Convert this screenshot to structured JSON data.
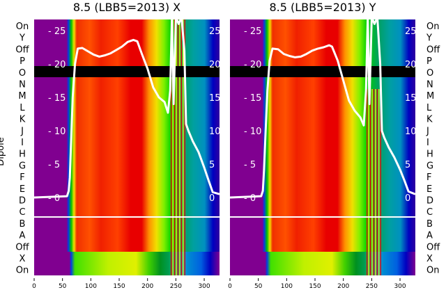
{
  "chart_data": [
    {
      "type": "heatmap",
      "title": "8.5 (LBB5=2013) X",
      "ylabel": "Dipole",
      "xlim": [
        0,
        327
      ],
      "xticks": [
        0,
        50,
        100,
        150,
        200,
        250,
        300
      ],
      "row_labels": [
        "On",
        "Y",
        "Off",
        "P",
        "O",
        "N",
        "M",
        "L",
        "K",
        "J",
        "I",
        "H",
        "G",
        "F",
        "E",
        "D",
        "C",
        "B",
        "A",
        "Off",
        "X",
        "On"
      ],
      "inner_yticks": [
        25,
        20,
        15,
        10,
        5,
        0
      ],
      "line": {
        "x": [
          0,
          58,
          61,
          63,
          65,
          68,
          72,
          77,
          85,
          95,
          105,
          115,
          125,
          135,
          145,
          155,
          165,
          175,
          182,
          190,
          200,
          210,
          220,
          230,
          236,
          240,
          243,
          246,
          250,
          255,
          260,
          265,
          268,
          272,
          280,
          290,
          300,
          308,
          315,
          327
        ],
        "y": [
          0,
          0.2,
          1,
          3,
          8,
          15,
          20,
          22.3,
          22.4,
          21.9,
          21.4,
          21.1,
          21.3,
          21.6,
          22.1,
          22.6,
          23.3,
          23.6,
          23.4,
          21.5,
          19.3,
          16.5,
          15,
          14.3,
          12.7,
          16,
          27,
          14,
          27,
          26,
          27,
          22,
          11,
          10,
          8.4,
          6.8,
          4.5,
          2.5,
          0.8,
          0.5
        ]
      }
    },
    {
      "type": "heatmap",
      "title": "8.5 (LBB5=2013) Y",
      "ylabel": "",
      "xlim": [
        0,
        327
      ],
      "xticks": [
        0,
        50,
        100,
        150,
        200,
        250,
        300
      ],
      "row_labels": [
        "On",
        "Y",
        "Off",
        "P",
        "O",
        "N",
        "M",
        "L",
        "K",
        "J",
        "I",
        "H",
        "G",
        "F",
        "E",
        "D",
        "C",
        "B",
        "A",
        "Off",
        "X",
        "On"
      ],
      "inner_yticks": [
        25,
        20,
        15,
        10,
        5,
        0
      ],
      "line": {
        "x": [
          0,
          55,
          58,
          60,
          63,
          66,
          70,
          75,
          85,
          95,
          105,
          115,
          125,
          135,
          145,
          155,
          165,
          175,
          180,
          190,
          200,
          210,
          220,
          230,
          236,
          240,
          243,
          246,
          250,
          255,
          260,
          265,
          268,
          272,
          280,
          290,
          300,
          308,
          315,
          327
        ],
        "y": [
          0,
          0.2,
          1,
          4,
          10,
          16,
          20.5,
          22.3,
          22.2,
          21.5,
          21.2,
          21,
          21.1,
          21.5,
          22,
          22.3,
          22.5,
          22.8,
          22.6,
          20.5,
          17.5,
          14.5,
          13,
          12,
          10.8,
          16,
          27,
          14,
          27,
          26,
          27,
          20,
          10,
          9,
          7.5,
          6,
          4.2,
          2.5,
          0.9,
          0.5
        ]
      }
    }
  ]
}
